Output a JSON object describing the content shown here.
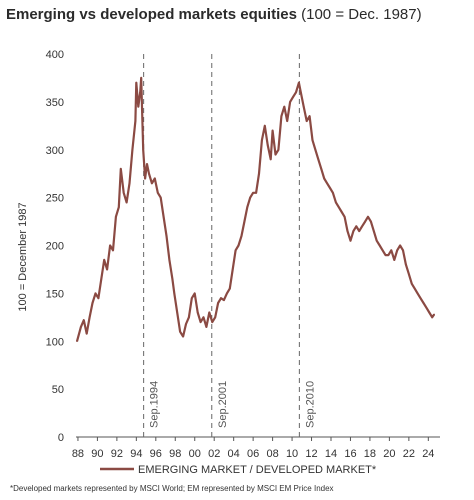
{
  "header": {
    "title_bold": "Emerging vs developed markets equities",
    "title_light": "(100 = Dec. 1987)"
  },
  "footnote": "*Developed markets represented by MSCI World; EM represented by MSCI EM Price Index",
  "colors": {
    "series": "#8b4a43",
    "axis": "#555555",
    "event_line": "#666666"
  },
  "chart_data": {
    "type": "line",
    "title": "Emerging vs developed markets equities (100 = Dec. 1987)",
    "ylabel": "100 = December 1987",
    "xlabel": "",
    "ylim": [
      0,
      400
    ],
    "xlim": [
      1987.8,
      2025.2
    ],
    "yticks": [
      0,
      50,
      100,
      150,
      200,
      250,
      300,
      350,
      400
    ],
    "xticks": [
      1988,
      1990,
      1992,
      1994,
      1996,
      1998,
      2000,
      2002,
      2004,
      2006,
      2008,
      2010,
      2012,
      2014,
      2016,
      2018,
      2020,
      2022,
      2024
    ],
    "xtick_labels": [
      "88",
      "90",
      "92",
      "94",
      "96",
      "98",
      "00",
      "02",
      "04",
      "06",
      "08",
      "10",
      "12",
      "14",
      "16",
      "18",
      "20",
      "22",
      "24"
    ],
    "grid": false,
    "legend_position": "bottom",
    "annotations": [
      {
        "x": 1994.75,
        "label": "Sep.1994"
      },
      {
        "x": 2001.75,
        "label": "Sep.2001"
      },
      {
        "x": 2010.75,
        "label": "Sep.2010"
      }
    ],
    "series": [
      {
        "name": "EMERGING MARKET / DEVELOPED MARKET*",
        "x": [
          1987.9,
          1988.3,
          1988.6,
          1988.9,
          1989.2,
          1989.5,
          1989.8,
          1990.1,
          1990.4,
          1990.7,
          1991.0,
          1991.3,
          1991.6,
          1991.9,
          1992.2,
          1992.4,
          1992.7,
          1993.0,
          1993.3,
          1993.6,
          1993.9,
          1994.0,
          1994.2,
          1994.4,
          1994.5,
          1994.7,
          1994.9,
          1995.1,
          1995.3,
          1995.6,
          1995.9,
          1996.2,
          1996.5,
          1996.8,
          1997.1,
          1997.4,
          1997.7,
          1997.9,
          1998.2,
          1998.5,
          1998.8,
          1999.1,
          1999.4,
          1999.7,
          2000.0,
          2000.3,
          2000.6,
          2000.9,
          2001.2,
          2001.5,
          2001.8,
          2002.1,
          2002.4,
          2002.7,
          2003.0,
          2003.3,
          2003.6,
          2003.9,
          2004.2,
          2004.5,
          2004.8,
          2005.1,
          2005.4,
          2005.7,
          2006.0,
          2006.3,
          2006.6,
          2006.9,
          2007.2,
          2007.5,
          2007.8,
          2008.0,
          2008.3,
          2008.6,
          2008.9,
          2009.2,
          2009.5,
          2009.8,
          2010.1,
          2010.4,
          2010.7,
          2010.9,
          2011.2,
          2011.5,
          2011.8,
          2012.1,
          2012.4,
          2012.7,
          2013.0,
          2013.3,
          2013.6,
          2013.9,
          2014.2,
          2014.5,
          2014.8,
          2015.1,
          2015.4,
          2015.7,
          2016.0,
          2016.3,
          2016.6,
          2016.9,
          2017.2,
          2017.5,
          2017.8,
          2018.1,
          2018.4,
          2018.7,
          2019.0,
          2019.3,
          2019.6,
          2019.9,
          2020.2,
          2020.5,
          2020.8,
          2021.1,
          2021.4,
          2021.7,
          2022.0,
          2022.3,
          2022.6,
          2022.9,
          2023.2,
          2023.5,
          2023.8,
          2024.1,
          2024.4,
          2024.6
        ],
        "values": [
          100,
          115,
          122,
          108,
          125,
          140,
          150,
          145,
          165,
          185,
          175,
          200,
          195,
          230,
          240,
          280,
          255,
          245,
          265,
          300,
          330,
          370,
          345,
          360,
          375,
          300,
          270,
          285,
          275,
          265,
          270,
          255,
          250,
          230,
          210,
          185,
          165,
          150,
          130,
          110,
          105,
          118,
          125,
          145,
          150,
          130,
          120,
          125,
          115,
          130,
          120,
          125,
          140,
          145,
          143,
          150,
          155,
          175,
          195,
          200,
          210,
          225,
          240,
          250,
          255,
          255,
          275,
          310,
          325,
          305,
          290,
          320,
          295,
          300,
          335,
          345,
          330,
          350,
          355,
          360,
          370,
          360,
          345,
          330,
          335,
          310,
          300,
          290,
          280,
          270,
          265,
          260,
          255,
          245,
          240,
          235,
          230,
          215,
          205,
          215,
          220,
          215,
          220,
          225,
          230,
          225,
          215,
          205,
          200,
          195,
          190,
          190,
          195,
          185,
          195,
          200,
          195,
          180,
          170,
          160,
          155,
          150,
          145,
          140,
          135,
          130,
          125,
          128
        ]
      }
    ]
  }
}
